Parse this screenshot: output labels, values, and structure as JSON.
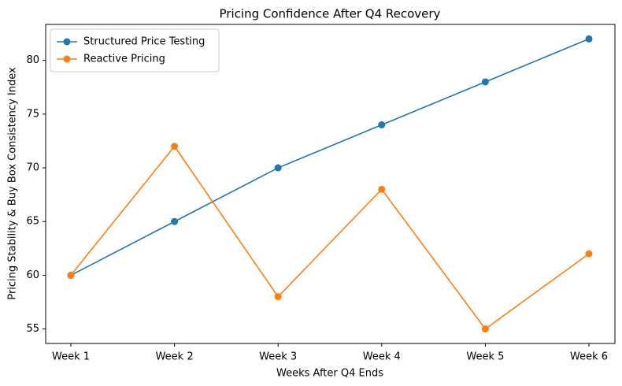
{
  "chart_data": {
    "type": "line",
    "title": "Pricing Confidence After Q4 Recovery",
    "x_label": "Weeks After Q4 Ends",
    "y_label": "Pricing Stability & Buy Box Consistency Index",
    "categories": [
      "Week 1",
      "Week 2",
      "Week 3",
      "Week 4",
      "Week 5",
      "Week 6"
    ],
    "series": [
      {
        "name": "Structured Price Testing",
        "color": "#1f77b4",
        "values": [
          60,
          65,
          70,
          74,
          78,
          82
        ]
      },
      {
        "name": "Reactive Pricing",
        "color": "#ff7f0e",
        "values": [
          60,
          72,
          58,
          68,
          55,
          62
        ]
      }
    ],
    "ylim": [
      53.65,
      83.35
    ],
    "yticks": [
      55,
      60,
      65,
      70,
      75,
      80
    ],
    "legend": "upper left"
  }
}
